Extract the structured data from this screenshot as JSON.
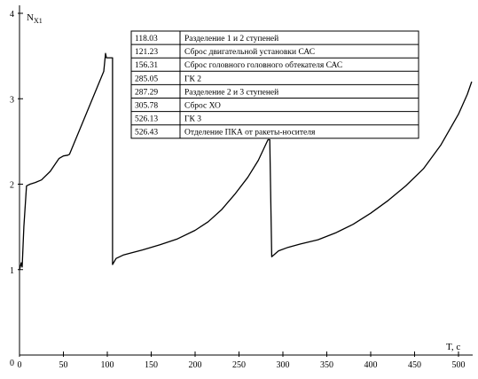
{
  "chart_data": {
    "type": "line",
    "title": "",
    "xlabel": "T, c",
    "ylabel": "N",
    "ylabel_sub": "X1",
    "xlim": [
      0,
      510
    ],
    "ylim": [
      0,
      4
    ],
    "grid": false,
    "x_ticks": [
      0,
      50,
      100,
      150,
      200,
      250,
      300,
      350,
      400,
      450,
      500
    ],
    "x_tick_labels": [
      "0",
      "50",
      "100",
      "150",
      "200",
      "250",
      "300",
      "350",
      "400",
      "450",
      "500"
    ],
    "y_ticks": [
      1,
      2,
      3,
      4
    ],
    "y_tick_labels": [
      "1",
      "2",
      "3",
      "4"
    ],
    "series": [
      {
        "color": "#000000",
        "points": [
          [
            0,
            1.0
          ],
          [
            2,
            1.08
          ],
          [
            3,
            1.03
          ],
          [
            5,
            1.5
          ],
          [
            8,
            1.98
          ],
          [
            12,
            2.0
          ],
          [
            18,
            2.02
          ],
          [
            25,
            2.05
          ],
          [
            35,
            2.15
          ],
          [
            45,
            2.3
          ],
          [
            50,
            2.33
          ],
          [
            55,
            2.34
          ],
          [
            57,
            2.35
          ],
          [
            75,
            2.8
          ],
          [
            96,
            3.32
          ],
          [
            98,
            3.53
          ],
          [
            99,
            3.48
          ],
          [
            106,
            3.48
          ],
          [
            106,
            1.06
          ],
          [
            110,
            1.13
          ],
          [
            118,
            1.17
          ],
          [
            125,
            1.19
          ],
          [
            140,
            1.23
          ],
          [
            160,
            1.29
          ],
          [
            180,
            1.36
          ],
          [
            200,
            1.46
          ],
          [
            215,
            1.56
          ],
          [
            230,
            1.7
          ],
          [
            245,
            1.88
          ],
          [
            260,
            2.08
          ],
          [
            272,
            2.28
          ],
          [
            283,
            2.52
          ],
          [
            285.05,
            2.52
          ],
          [
            287.29,
            1.15
          ],
          [
            295,
            1.22
          ],
          [
            305.78,
            1.26
          ],
          [
            320,
            1.3
          ],
          [
            340,
            1.35
          ],
          [
            360,
            1.43
          ],
          [
            380,
            1.53
          ],
          [
            400,
            1.66
          ],
          [
            420,
            1.81
          ],
          [
            440,
            1.98
          ],
          [
            460,
            2.18
          ],
          [
            480,
            2.46
          ],
          [
            500,
            2.82
          ],
          [
            510,
            3.05
          ],
          [
            515,
            3.2
          ]
        ]
      }
    ],
    "legend_placement": "top-center",
    "events": [
      {
        "time": "118.03",
        "label": "Разделение 1 и 2 ступеней"
      },
      {
        "time": "121.23",
        "label": "Сброс двигательной установки САС"
      },
      {
        "time": "156.31",
        "label": "Сброс головного головного обтекателя САС"
      },
      {
        "time": "285.05",
        "label": "ГК 2"
      },
      {
        "time": "287.29",
        "label": "Разделение 2 и 3 ступеней"
      },
      {
        "time": "305.78",
        "label": "Сброс ХО"
      },
      {
        "time": "526.13",
        "label": "ГК 3"
      },
      {
        "time": "526.43",
        "label": "Отделение ПКА от ракеты-носителя"
      }
    ]
  }
}
